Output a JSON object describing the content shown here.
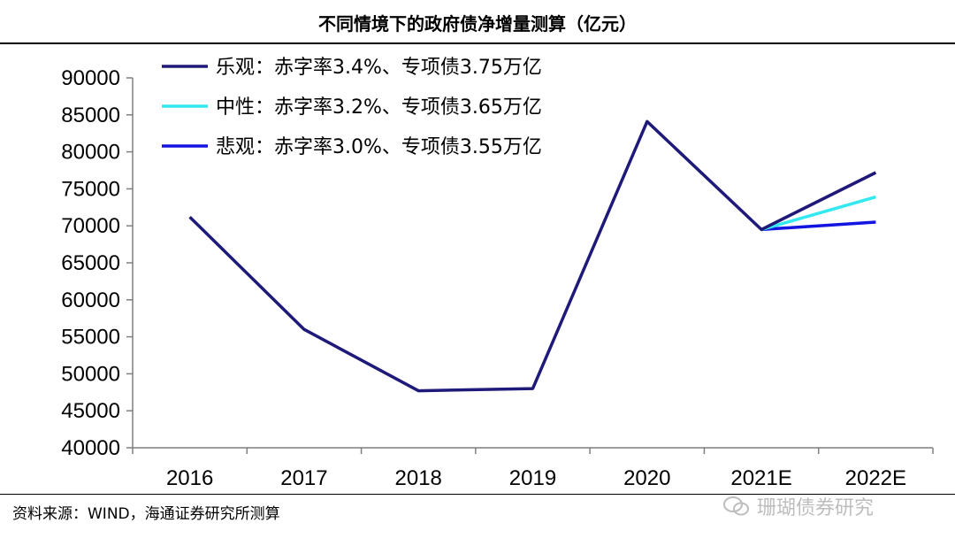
{
  "title": "不同情境下的政府债净增量测算（亿元）",
  "source": "资料来源：WIND，海通证券研究所测算",
  "watermark": {
    "text": "珊瑚债券研究",
    "icon": "wechat-icon"
  },
  "chart_data": {
    "type": "line",
    "categories": [
      "2016",
      "2017",
      "2018",
      "2019",
      "2020",
      "2021E",
      "2022E"
    ],
    "y_ticks": [
      "40000",
      "45000",
      "50000",
      "55000",
      "60000",
      "65000",
      "70000",
      "75000",
      "80000",
      "85000",
      "90000"
    ],
    "ylim": [
      40000,
      90000
    ],
    "legend_position": "top-left",
    "grid": false,
    "series": [
      {
        "name": "乐观：赤字率3.4%、专项债3.75万亿",
        "color": "#1f1a7a",
        "values": [
          71200,
          56000,
          47700,
          48000,
          84100,
          69500,
          77200
        ]
      },
      {
        "name": "中性：赤字率3.2%、专项债3.65万亿",
        "color": "#33e8f0",
        "values": [
          null,
          null,
          null,
          null,
          null,
          69500,
          73900
        ]
      },
      {
        "name": "悲观：赤字率3.0%、专项债3.55万亿",
        "color": "#1414e0",
        "values": [
          null,
          null,
          null,
          null,
          null,
          69500,
          70500
        ]
      }
    ]
  }
}
